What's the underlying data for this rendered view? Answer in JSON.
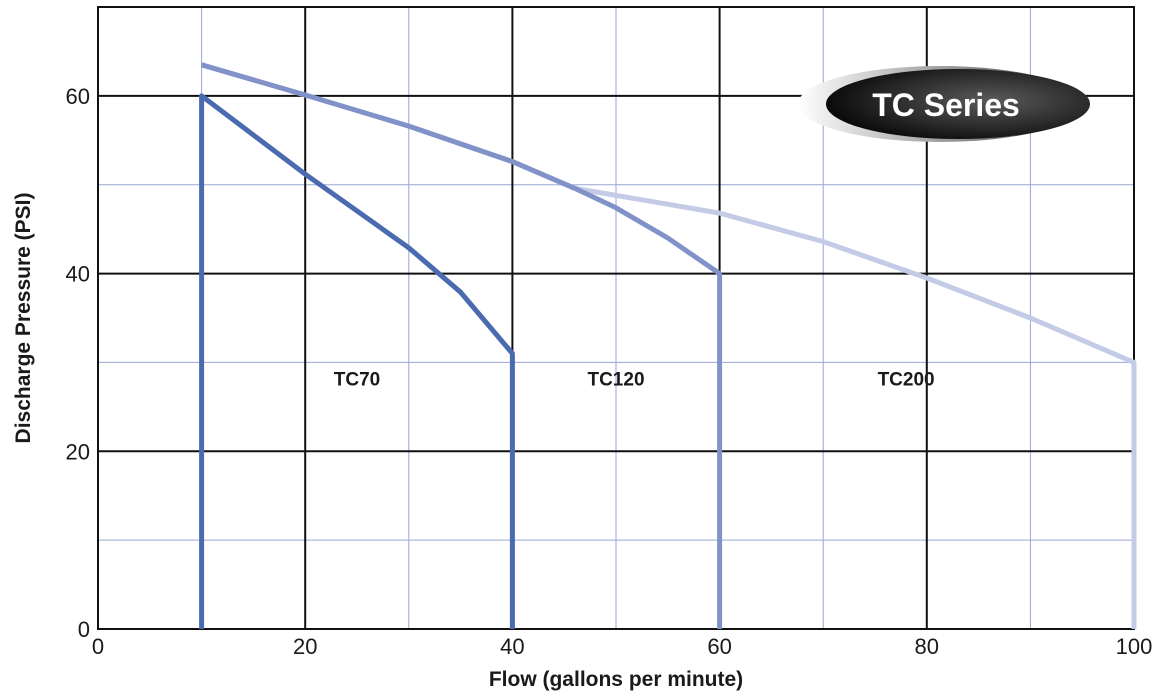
{
  "chart_data": {
    "type": "line",
    "title": "",
    "xlabel": "Flow (gallons per minute)",
    "ylabel": "Discharge Pressure (PSI)",
    "xlim": [
      0,
      100
    ],
    "ylim": [
      0,
      70
    ],
    "x_ticks": [
      0,
      20,
      40,
      60,
      80,
      100
    ],
    "y_ticks": [
      0,
      20,
      40,
      60
    ],
    "x_tick_labels": [
      "0",
      "20",
      "40",
      "60",
      "80",
      "100"
    ],
    "y_tick_labels": [
      "0",
      "20",
      "40",
      "60"
    ],
    "grid": true,
    "badge": "TC Series",
    "series": [
      {
        "name": "TC200",
        "color": "#c4cbe6",
        "points": [
          [
            10,
            63.5
          ],
          [
            20,
            60.1
          ],
          [
            30,
            56.6
          ],
          [
            40,
            52.6
          ],
          [
            46,
            49.6
          ],
          [
            50,
            48.8
          ],
          [
            60,
            46.8
          ],
          [
            70,
            43.6
          ],
          [
            80,
            39.5
          ],
          [
            90,
            35.0
          ],
          [
            100,
            30.0
          ],
          [
            100,
            0
          ]
        ]
      },
      {
        "name": "TC120",
        "color": "#8192c8",
        "points": [
          [
            10,
            63.5
          ],
          [
            20,
            60.1
          ],
          [
            30,
            56.6
          ],
          [
            40,
            52.6
          ],
          [
            46,
            49.6
          ],
          [
            50,
            47.4
          ],
          [
            55,
            44.0
          ],
          [
            60,
            40.0
          ],
          [
            60,
            0
          ]
        ]
      },
      {
        "name": "TC70",
        "color": "#4a6bb0",
        "points": [
          [
            10,
            0
          ],
          [
            10,
            60.0
          ],
          [
            20,
            51.2
          ],
          [
            30,
            42.9
          ],
          [
            35,
            37.9
          ],
          [
            40,
            31.0
          ],
          [
            40,
            0
          ]
        ]
      }
    ],
    "region_labels": [
      {
        "text": "TC70",
        "x": 25,
        "y": 27.4
      },
      {
        "text": "TC120",
        "x": 50,
        "y": 27.4
      },
      {
        "text": "TC200",
        "x": 78,
        "y": 27.4
      }
    ]
  }
}
